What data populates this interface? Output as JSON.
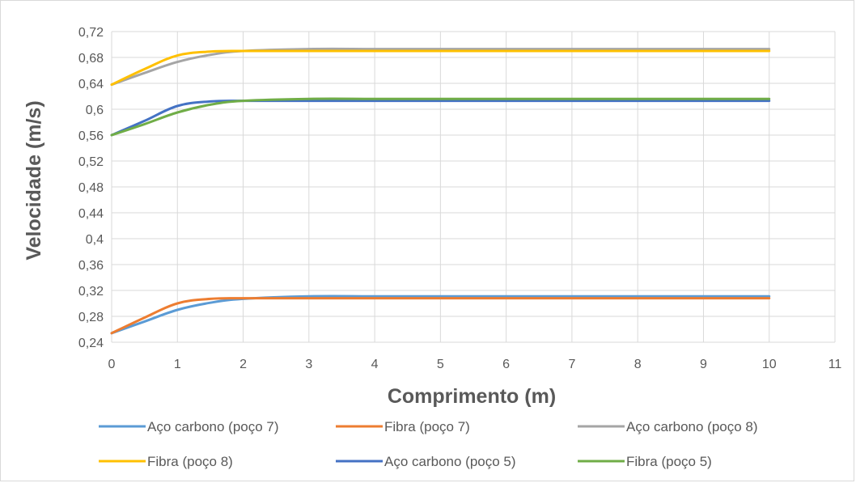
{
  "chart_data": {
    "type": "line",
    "title": "",
    "xlabel": "Comprimento (m)",
    "ylabel": "Velocidade (m/s)",
    "xlim": [
      0,
      11
    ],
    "ylim": [
      0.24,
      0.72
    ],
    "x_ticks": [
      "0",
      "1",
      "2",
      "3",
      "4",
      "5",
      "6",
      "7",
      "8",
      "9",
      "10",
      "11"
    ],
    "y_ticks": [
      "0,24",
      "0,28",
      "0,32",
      "0,36",
      "0,4",
      "0,44",
      "0,48",
      "0,52",
      "0,56",
      "0,6",
      "0,64",
      "0,68",
      "0,72"
    ],
    "grid": true,
    "legend_position": "bottom",
    "series": [
      {
        "name": "Aço carbono (poço 7)",
        "color": "#5b9bd5",
        "x": [
          0,
          0.5,
          1,
          1.5,
          2,
          3,
          4,
          5,
          6,
          7,
          8,
          9,
          10
        ],
        "y": [
          0.254,
          0.272,
          0.29,
          0.301,
          0.307,
          0.311,
          0.311,
          0.311,
          0.311,
          0.311,
          0.311,
          0.311,
          0.311
        ]
      },
      {
        "name": "Fibra (poço 7)",
        "color": "#ed7d31",
        "x": [
          0,
          0.5,
          1,
          1.5,
          2,
          3,
          4,
          5,
          6,
          7,
          8,
          9,
          10
        ],
        "y": [
          0.254,
          0.278,
          0.3,
          0.307,
          0.308,
          0.308,
          0.308,
          0.308,
          0.308,
          0.308,
          0.308,
          0.308,
          0.308
        ]
      },
      {
        "name": "Aço carbono (poço 8)",
        "color": "#a5a5a5",
        "x": [
          0,
          0.5,
          1,
          1.5,
          2,
          3,
          4,
          5,
          6,
          7,
          8,
          9,
          10
        ],
        "y": [
          0.638,
          0.656,
          0.673,
          0.684,
          0.69,
          0.693,
          0.693,
          0.693,
          0.693,
          0.693,
          0.693,
          0.693,
          0.693
        ]
      },
      {
        "name": "Fibra (poço 8)",
        "color": "#ffc000",
        "x": [
          0,
          0.5,
          1,
          1.5,
          2,
          3,
          4,
          5,
          6,
          7,
          8,
          9,
          10
        ],
        "y": [
          0.638,
          0.662,
          0.683,
          0.689,
          0.69,
          0.69,
          0.69,
          0.69,
          0.69,
          0.69,
          0.69,
          0.69,
          0.69
        ]
      },
      {
        "name": "Aço carbono (poço 5)",
        "color": "#4472c4",
        "x": [
          0,
          0.5,
          1,
          1.5,
          2,
          3,
          4,
          5,
          6,
          7,
          8,
          9,
          10
        ],
        "y": [
          0.56,
          0.582,
          0.605,
          0.612,
          0.613,
          0.613,
          0.613,
          0.613,
          0.613,
          0.613,
          0.613,
          0.613,
          0.613
        ]
      },
      {
        "name": "Fibra (poço 5)",
        "color": "#70ad47",
        "x": [
          0,
          0.5,
          1,
          1.5,
          2,
          3,
          4,
          5,
          6,
          7,
          8,
          9,
          10
        ],
        "y": [
          0.56,
          0.577,
          0.595,
          0.607,
          0.613,
          0.616,
          0.616,
          0.616,
          0.616,
          0.616,
          0.616,
          0.616,
          0.616
        ]
      }
    ]
  }
}
